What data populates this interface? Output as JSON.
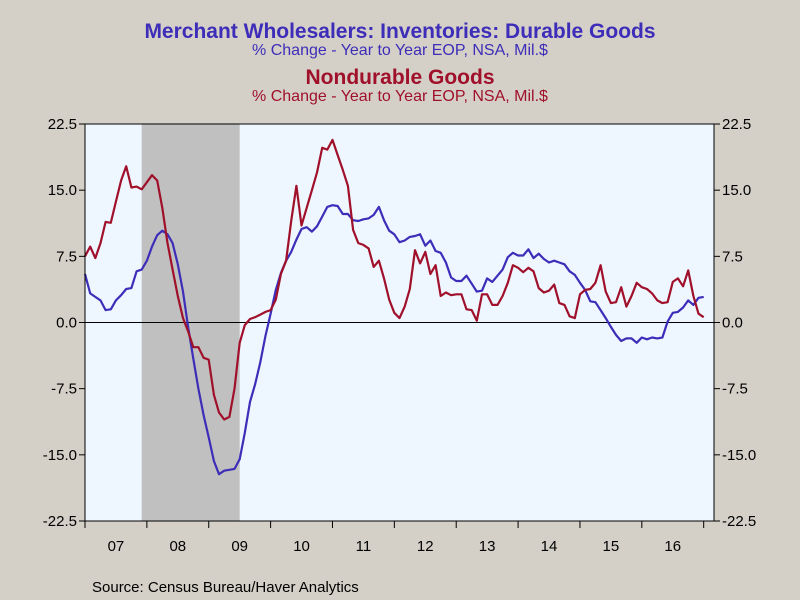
{
  "titles": {
    "durable_title": "Merchant Wholesalers: Inventories: Durable Goods",
    "durable_subtitle": "% Change - Year to Year     EOP, NSA, Mil.$",
    "nondurable_title": "Nondurable Goods",
    "nondurable_subtitle": "% Change - Year to Year     EOP, NSA, Mil.$"
  },
  "source": "Source:  Census Bureau/Haver Analytics",
  "colors": {
    "durable": "#3d2db8",
    "nondurable": "#a0102a",
    "plot_bg": "#eef6ff",
    "recession": "#c0c0c0",
    "frame_bg": "#d4d0c8"
  },
  "chart_data": {
    "type": "line",
    "ylim": [
      -22.5,
      22.5
    ],
    "y_ticks": [
      22.5,
      15.0,
      7.5,
      0.0,
      -7.5,
      -15.0,
      -22.5
    ],
    "y_tick_labels": [
      "22.5",
      "15.0",
      "7.5",
      "0.0",
      "-7.5",
      "-15.0",
      "-22.5"
    ],
    "x_start": "2007-01",
    "x_end": "2017-03",
    "x_tick_labels": [
      "07",
      "08",
      "09",
      "10",
      "11",
      "12",
      "13",
      "14",
      "15",
      "16"
    ],
    "grid": false,
    "shaded_period": {
      "start": "2007-12",
      "end": "2009-06"
    },
    "series": [
      {
        "name": "Durable Goods",
        "frequency": "monthly",
        "start": "2007-01",
        "values": [
          5.5,
          3.3,
          2.9,
          2.5,
          1.4,
          1.5,
          2.5,
          3.1,
          3.8,
          3.9,
          5.8,
          6.0,
          7.0,
          8.6,
          9.9,
          10.4,
          10.0,
          9.0,
          6.6,
          3.5,
          -0.5,
          -4.1,
          -7.5,
          -10.5,
          -13.0,
          -15.7,
          -17.2,
          -16.8,
          -16.7,
          -16.6,
          -15.5,
          -12.5,
          -9.0,
          -7.0,
          -4.5,
          -1.5,
          1.0,
          3.7,
          5.6,
          7.0,
          8.0,
          9.4,
          10.6,
          10.8,
          10.3,
          10.9,
          12.0,
          13.1,
          13.3,
          13.2,
          12.3,
          12.3,
          11.6,
          11.5,
          11.7,
          11.8,
          12.2,
          13.1,
          11.6,
          10.4,
          10.0,
          9.1,
          9.3,
          9.7,
          9.8,
          10.0,
          8.7,
          9.3,
          8.1,
          7.9,
          6.8,
          5.1,
          4.7,
          4.7,
          5.3,
          4.4,
          3.5,
          3.6,
          5.0,
          4.6,
          5.3,
          6.0,
          7.4,
          7.9,
          7.6,
          7.6,
          8.3,
          7.3,
          7.8,
          7.2,
          6.8,
          7.0,
          6.8,
          6.6,
          5.8,
          5.4,
          4.5,
          3.7,
          2.4,
          2.3,
          1.4,
          0.5,
          -0.5,
          -1.4,
          -2.1,
          -1.8,
          -1.8,
          -2.3,
          -1.7,
          -1.9,
          -1.7,
          -1.8,
          -1.7,
          0.1,
          1.1,
          1.2,
          1.7,
          2.5,
          2.0,
          2.8,
          2.9
        ]
      },
      {
        "name": "Nondurable Goods",
        "frequency": "monthly",
        "start": "2007-01",
        "values": [
          7.5,
          8.6,
          7.3,
          9.0,
          11.4,
          11.3,
          13.7,
          16.1,
          17.7,
          15.3,
          15.4,
          15.1,
          15.9,
          16.7,
          16.1,
          13.0,
          9.0,
          6.0,
          3.0,
          0.5,
          -1.0,
          -2.8,
          -2.8,
          -4.0,
          -4.2,
          -8.2,
          -10.2,
          -11.0,
          -10.7,
          -7.5,
          -2.3,
          -0.3,
          0.4,
          0.6,
          0.9,
          1.2,
          1.4,
          2.6,
          5.5,
          7.0,
          11.5,
          15.5,
          11.0,
          13.0,
          15.0,
          17.0,
          19.8,
          19.6,
          20.7,
          19.0,
          17.3,
          15.5,
          10.5,
          9.0,
          8.8,
          8.4,
          6.3,
          7.0,
          5.0,
          2.6,
          1.1,
          0.5,
          1.8,
          3.8,
          8.2,
          6.7,
          8.0,
          5.5,
          6.5,
          3.0,
          3.4,
          3.1,
          3.2,
          3.2,
          1.5,
          1.4,
          0.2,
          3.2,
          3.2,
          2.0,
          2.0,
          3.0,
          4.5,
          6.5,
          6.2,
          5.7,
          6.2,
          5.8,
          3.9,
          3.4,
          3.6,
          4.3,
          2.2,
          2.0,
          0.7,
          0.5,
          3.2,
          3.7,
          3.8,
          4.5,
          6.5,
          3.5,
          2.2,
          2.3,
          4.0,
          1.8,
          3.0,
          4.5,
          4.0,
          3.8,
          3.3,
          2.5,
          2.2,
          2.3,
          4.6,
          5.0,
          4.1,
          5.9,
          3.0,
          1.0,
          0.6
        ]
      }
    ]
  }
}
